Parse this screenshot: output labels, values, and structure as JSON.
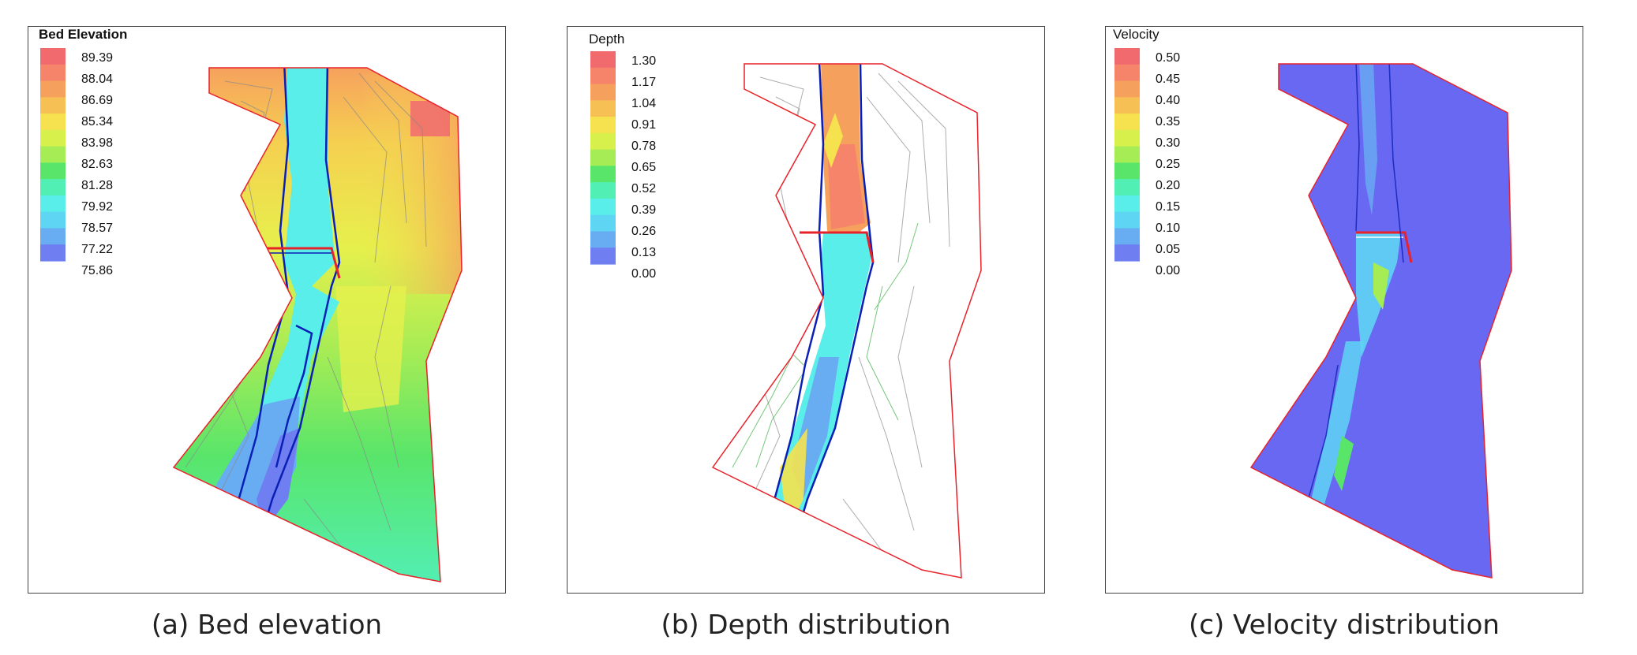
{
  "panels": [
    {
      "legend_title": "Bed Elevation",
      "labels": [
        "89.39",
        "88.04",
        "86.69",
        "85.34",
        "83.98",
        "82.63",
        "81.28",
        "79.92",
        "78.57",
        "77.22",
        "75.86"
      ],
      "caption": "(a) Bed elevation"
    },
    {
      "legend_title": "Depth",
      "labels": [
        "1.30",
        "1.17",
        "1.04",
        "0.91",
        "0.78",
        "0.65",
        "0.52",
        "0.39",
        "0.26",
        "0.13",
        "0.00"
      ],
      "caption": "(b) Depth distribution"
    },
    {
      "legend_title": "Velocity",
      "labels": [
        "0.50",
        "0.45",
        "0.40",
        "0.35",
        "0.30",
        "0.25",
        "0.20",
        "0.15",
        "0.10",
        "0.05",
        "0.00"
      ],
      "caption": "(c) Velocity distribution"
    }
  ],
  "colorscale": [
    "#f06a6e",
    "#f5846a",
    "#f6a05e",
    "#f7c054",
    "#f5e24e",
    "#d8f04c",
    "#a6ec55",
    "#59e56a",
    "#52efb5",
    "#59eee9",
    "#5fd5f4",
    "#68acf2",
    "#6f7ef0"
  ],
  "colors": {
    "boundary": "#e8222a",
    "channel_line": "#0a1fb5",
    "mesh_line_a": "#8a8a8a",
    "mesh_line_b": "#3cb043",
    "velocity_bg": "#6868f2"
  }
}
